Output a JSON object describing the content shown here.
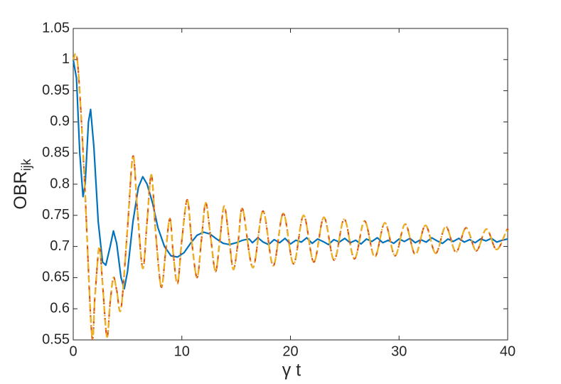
{
  "chart_data": {
    "type": "line",
    "xlabel": "γ t",
    "ylabel": {
      "text": "OBR",
      "subscript": "ijk"
    },
    "xlim": [
      0,
      40
    ],
    "ylim": [
      0.55,
      1.05
    ],
    "xticks": [
      0,
      10,
      20,
      30,
      40
    ],
    "yticks": [
      0.55,
      0.6,
      0.65,
      0.7,
      0.75,
      0.8,
      0.85,
      0.9,
      0.95,
      1,
      1.05
    ],
    "grid": false,
    "series": [
      {
        "color": "#0072bd",
        "dash": "solid",
        "smooth": false,
        "x": [
          0,
          0.3,
          0.6,
          0.9,
          1.1,
          1.4,
          1.6,
          1.9,
          2.3,
          2.7,
          3.0,
          3.4,
          3.7,
          4.0,
          4.4,
          4.7,
          5.0,
          5.5,
          6.0,
          6.4,
          6.8,
          7.3,
          7.8,
          8.4,
          9.0,
          9.6,
          10.2,
          10.8,
          11.4,
          12.0,
          12.6,
          13.2,
          13.8,
          14.4,
          15.0,
          15.6,
          16.2,
          16.5,
          17,
          17.5,
          18,
          18.5,
          19,
          19.5,
          20,
          20.5,
          21,
          21.5,
          22,
          22.5,
          23,
          23.5,
          24,
          24.5,
          25,
          25.5,
          26,
          26.5,
          27,
          27.5,
          28,
          28.5,
          29,
          29.5,
          30,
          30.5,
          31,
          31.5,
          32,
          32.5,
          33,
          33.5,
          34,
          34.5,
          35,
          35.5,
          36,
          36.5,
          37,
          37.5,
          38,
          38.5,
          39,
          39.5,
          40
        ],
        "values": [
          1.0,
          0.97,
          0.85,
          0.78,
          0.8,
          0.9,
          0.92,
          0.86,
          0.74,
          0.675,
          0.67,
          0.7,
          0.725,
          0.705,
          0.65,
          0.632,
          0.66,
          0.74,
          0.795,
          0.812,
          0.8,
          0.77,
          0.73,
          0.7,
          0.685,
          0.683,
          0.69,
          0.705,
          0.718,
          0.723,
          0.72,
          0.712,
          0.705,
          0.703,
          0.706,
          0.71,
          0.712,
          0.706,
          0.714,
          0.707,
          0.703,
          0.711,
          0.706,
          0.713,
          0.704,
          0.71,
          0.707,
          0.714,
          0.705,
          0.712,
          0.708,
          0.703,
          0.711,
          0.707,
          0.713,
          0.706,
          0.71,
          0.704,
          0.712,
          0.708,
          0.714,
          0.706,
          0.71,
          0.705,
          0.712,
          0.708,
          0.713,
          0.706,
          0.711,
          0.707,
          0.714,
          0.709,
          0.705,
          0.712,
          0.708,
          0.713,
          0.707,
          0.711,
          0.706,
          0.712,
          0.709,
          0.713,
          0.707,
          0.71,
          0.712
        ]
      },
      {
        "color": "#d95319",
        "dash": "dashed",
        "smooth": true,
        "x": [
          0,
          0.4,
          1.0,
          1.7,
          2.0,
          2.4,
          2.7,
          3.1,
          3.4,
          3.7,
          4.0,
          4.4,
          5.0,
          5.5,
          5.9,
          6.4,
          6.8,
          7.2,
          7.6,
          8.1,
          8.5,
          8.9,
          9.2,
          9.6,
          10.0,
          10.5,
          10.9,
          11.4,
          11.8,
          12.2,
          12.65,
          13.1,
          13.5,
          13.9,
          14.35,
          14.75,
          15.2,
          15.6,
          16.54,
          17.47,
          18.41,
          19.34,
          20.28,
          21.21,
          22.15,
          23.08,
          24.02,
          24.95,
          25.89,
          26.82,
          27.76,
          28.69,
          29.63,
          30.56,
          31.5,
          32.43,
          33.37,
          34.3,
          35.24,
          36.17,
          37.11,
          38.04,
          38.98,
          39.91,
          40
        ],
        "values": [
          1.0,
          0.995,
          0.82,
          0.56,
          0.62,
          0.7,
          0.64,
          0.555,
          0.61,
          0.65,
          0.63,
          0.6,
          0.73,
          0.845,
          0.76,
          0.665,
          0.74,
          0.815,
          0.72,
          0.635,
          0.69,
          0.745,
          0.69,
          0.64,
          0.71,
          0.775,
          0.71,
          0.65,
          0.71,
          0.77,
          0.715,
          0.66,
          0.71,
          0.765,
          0.712,
          0.663,
          0.71,
          0.76,
          0.666,
          0.757,
          0.669,
          0.753,
          0.672,
          0.75,
          0.675,
          0.747,
          0.678,
          0.744,
          0.68,
          0.741,
          0.683,
          0.738,
          0.685,
          0.736,
          0.687,
          0.734,
          0.689,
          0.732,
          0.691,
          0.73,
          0.693,
          0.728,
          0.695,
          0.726,
          0.725
        ]
      },
      {
        "color": "#edb120",
        "dash": "dashdot",
        "smooth": true,
        "x": [
          0,
          0.4,
          1.0,
          1.7,
          2.0,
          2.4,
          2.7,
          3.1,
          3.4,
          3.7,
          4.0,
          4.4,
          5.0,
          5.5,
          5.9,
          6.4,
          6.8,
          7.2,
          7.6,
          8.1,
          8.5,
          8.9,
          9.2,
          9.6,
          10.0,
          10.5,
          10.9,
          11.4,
          11.8,
          12.2,
          12.65,
          13.1,
          13.5,
          13.9,
          14.35,
          14.75,
          15.2,
          15.6,
          16.54,
          17.47,
          18.41,
          19.34,
          20.28,
          21.21,
          22.15,
          23.08,
          24.02,
          24.95,
          25.89,
          26.82,
          27.76,
          28.69,
          29.63,
          30.56,
          31.5,
          32.43,
          33.37,
          34.3,
          35.24,
          36.17,
          37.11,
          38.04,
          38.98,
          39.91,
          40
        ],
        "values": [
          1.0,
          0.995,
          0.82,
          0.56,
          0.62,
          0.7,
          0.64,
          0.555,
          0.61,
          0.65,
          0.63,
          0.6,
          0.73,
          0.845,
          0.76,
          0.665,
          0.74,
          0.815,
          0.72,
          0.635,
          0.69,
          0.745,
          0.69,
          0.64,
          0.71,
          0.775,
          0.71,
          0.65,
          0.71,
          0.77,
          0.715,
          0.66,
          0.71,
          0.765,
          0.712,
          0.663,
          0.71,
          0.76,
          0.666,
          0.757,
          0.669,
          0.753,
          0.672,
          0.75,
          0.675,
          0.747,
          0.678,
          0.744,
          0.68,
          0.741,
          0.683,
          0.738,
          0.685,
          0.736,
          0.687,
          0.734,
          0.689,
          0.732,
          0.691,
          0.73,
          0.693,
          0.728,
          0.695,
          0.726,
          0.725
        ]
      }
    ]
  }
}
